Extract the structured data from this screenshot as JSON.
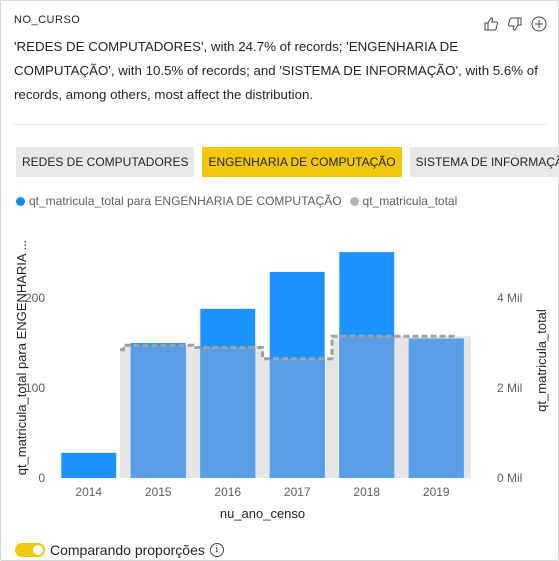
{
  "field_name": "NO_CURSO",
  "summary": "'REDES DE COMPUTADORES', with 24.7% of records; 'ENGENHARIA DE COMPUTAÇÃO', with 10.5% of records; and 'SISTEMA DE INFORMAÇÃO', with 5.6% of records, among others, most affect the distribution.",
  "actions": [
    {
      "icon": "thumbs-up-icon"
    },
    {
      "icon": "thumbs-down-icon"
    },
    {
      "icon": "add-icon"
    }
  ],
  "pills": [
    {
      "label": "REDES DE COMPUTADORES",
      "active": false
    },
    {
      "label": "ENGENHARIA DE COMPUTAÇÃO",
      "active": true
    },
    {
      "label": "SISTEMA DE INFORMAÇÃO",
      "active": false
    }
  ],
  "legend": [
    {
      "label": "qt_matricula_total para ENGENHARIA DE COMPUTAÇÃO",
      "color": "#118dff"
    },
    {
      "label": "qt_matricula_total",
      "color": "#b3b3b3"
    }
  ],
  "toggle": {
    "label": "Comparando proporções",
    "on": true,
    "info_icon": "info-icon"
  },
  "chart_data": {
    "type": "bar",
    "categories": [
      "2014",
      "2015",
      "2016",
      "2017",
      "2018",
      "2019"
    ],
    "xlabel": "nu_ano_censo",
    "ylabel": "qt_matricula_total para ENGENHARIA ...",
    "y2label": "qt_matricula_total",
    "ylim": [
      0,
      250
    ],
    "y2lim": [
      0,
      5000
    ],
    "yticks": [
      0,
      100,
      200
    ],
    "y2ticks": [
      {
        "value": 0,
        "label": "0 Mil"
      },
      {
        "value": 2000,
        "label": "2 Mil"
      },
      {
        "value": 4000,
        "label": "4 Mil"
      }
    ],
    "series": [
      {
        "name": "qt_matricula_total para ENGENHARIA DE COMPUTAÇÃO",
        "axis": "left",
        "color": "#118dff",
        "values": [
          28,
          150,
          188,
          229,
          251,
          155
        ]
      },
      {
        "name": "qt_matricula_total",
        "axis": "right",
        "color": "#e6e6e6",
        "values": [
          2850,
          2950,
          2900,
          2650,
          3150,
          3150
        ]
      }
    ],
    "compare_proportions": true,
    "grid": false
  }
}
